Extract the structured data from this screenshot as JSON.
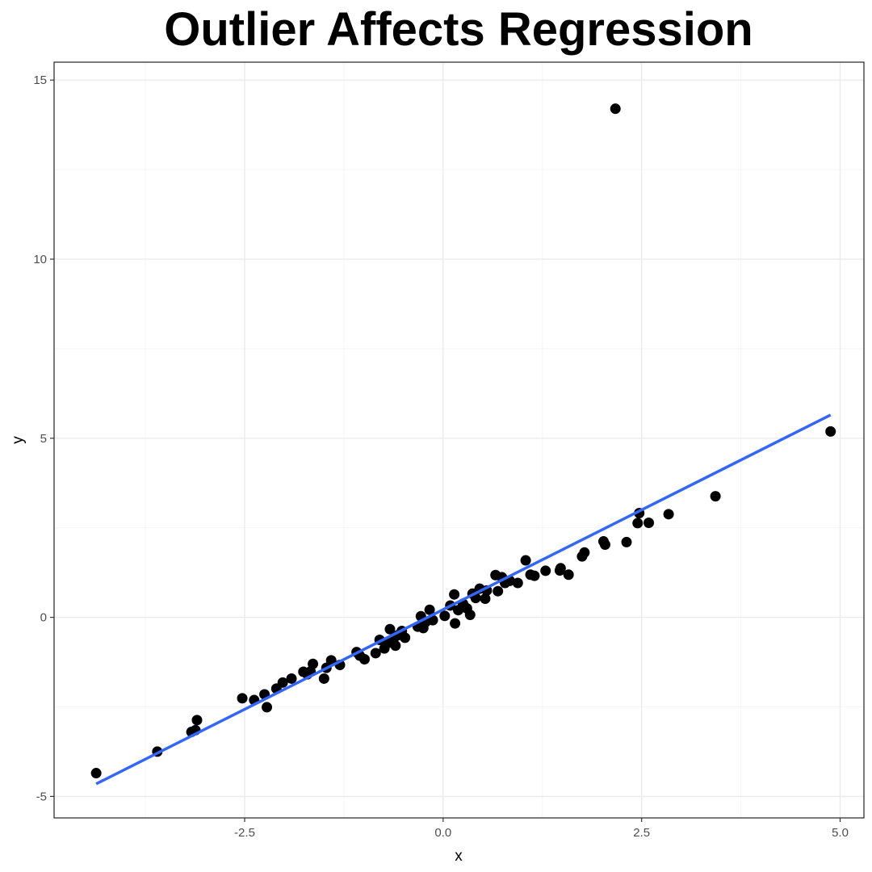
{
  "chart_data": {
    "type": "scatter",
    "title": "Outlier Affects Regression",
    "xlabel": "x",
    "ylabel": "y",
    "xlim": [
      -4.9,
      5.3
    ],
    "ylim": [
      -5.6,
      15.5
    ],
    "x_ticks": [
      -2.5,
      0.0,
      2.5,
      5.0
    ],
    "x_tick_labels": [
      "-2.5",
      "0.0",
      "2.5",
      "5.0"
    ],
    "y_ticks": [
      -5,
      0,
      5,
      10,
      15
    ],
    "y_tick_labels": [
      "-5",
      "0",
      "5",
      "10",
      "15"
    ],
    "grid": true,
    "points": [
      {
        "x": -4.37,
        "y": -4.35
      },
      {
        "x": -3.6,
        "y": -3.75
      },
      {
        "x": -3.17,
        "y": -3.2
      },
      {
        "x": -3.12,
        "y": -3.15
      },
      {
        "x": -3.1,
        "y": -2.87
      },
      {
        "x": -2.53,
        "y": -2.26
      },
      {
        "x": -2.38,
        "y": -2.31
      },
      {
        "x": -2.25,
        "y": -2.15
      },
      {
        "x": -2.22,
        "y": -2.51
      },
      {
        "x": -2.1,
        "y": -1.99
      },
      {
        "x": -2.02,
        "y": -1.82
      },
      {
        "x": -1.91,
        "y": -1.71
      },
      {
        "x": -1.76,
        "y": -1.52
      },
      {
        "x": -1.71,
        "y": -1.59
      },
      {
        "x": -1.67,
        "y": -1.51
      },
      {
        "x": -1.64,
        "y": -1.3
      },
      {
        "x": -1.5,
        "y": -1.71
      },
      {
        "x": -1.47,
        "y": -1.41
      },
      {
        "x": -1.41,
        "y": -1.2
      },
      {
        "x": -1.3,
        "y": -1.33
      },
      {
        "x": -1.09,
        "y": -0.97
      },
      {
        "x": -1.05,
        "y": -1.07
      },
      {
        "x": -0.99,
        "y": -1.17
      },
      {
        "x": -0.85,
        "y": -1.0
      },
      {
        "x": -0.8,
        "y": -0.63
      },
      {
        "x": -0.74,
        "y": -0.87
      },
      {
        "x": -0.7,
        "y": -0.72
      },
      {
        "x": -0.67,
        "y": -0.33
      },
      {
        "x": -0.63,
        "y": -0.65
      },
      {
        "x": -0.6,
        "y": -0.79
      },
      {
        "x": -0.57,
        "y": -0.5
      },
      {
        "x": -0.52,
        "y": -0.38
      },
      {
        "x": -0.48,
        "y": -0.57
      },
      {
        "x": -0.32,
        "y": -0.26
      },
      {
        "x": -0.28,
        "y": 0.03
      },
      {
        "x": -0.25,
        "y": -0.3
      },
      {
        "x": -0.22,
        "y": -0.13
      },
      {
        "x": -0.17,
        "y": 0.21
      },
      {
        "x": -0.13,
        "y": -0.08
      },
      {
        "x": 0.02,
        "y": 0.04
      },
      {
        "x": 0.09,
        "y": 0.33
      },
      {
        "x": 0.14,
        "y": 0.64
      },
      {
        "x": 0.15,
        "y": -0.17
      },
      {
        "x": 0.19,
        "y": 0.2
      },
      {
        "x": 0.25,
        "y": 0.38
      },
      {
        "x": 0.3,
        "y": 0.25
      },
      {
        "x": 0.34,
        "y": 0.07
      },
      {
        "x": 0.37,
        "y": 0.66
      },
      {
        "x": 0.41,
        "y": 0.54
      },
      {
        "x": 0.46,
        "y": 0.8
      },
      {
        "x": 0.53,
        "y": 0.52
      },
      {
        "x": 0.55,
        "y": 0.75
      },
      {
        "x": 0.66,
        "y": 1.18
      },
      {
        "x": 0.69,
        "y": 0.73
      },
      {
        "x": 0.74,
        "y": 1.12
      },
      {
        "x": 0.78,
        "y": 0.96
      },
      {
        "x": 0.84,
        "y": 1.02
      },
      {
        "x": 0.94,
        "y": 0.96
      },
      {
        "x": 1.04,
        "y": 1.59
      },
      {
        "x": 1.1,
        "y": 1.19
      },
      {
        "x": 1.15,
        "y": 1.16
      },
      {
        "x": 1.29,
        "y": 1.3
      },
      {
        "x": 1.47,
        "y": 1.31
      },
      {
        "x": 1.48,
        "y": 1.37
      },
      {
        "x": 1.58,
        "y": 1.19
      },
      {
        "x": 1.75,
        "y": 1.7
      },
      {
        "x": 1.78,
        "y": 1.81
      },
      {
        "x": 2.02,
        "y": 2.12
      },
      {
        "x": 2.04,
        "y": 2.03
      },
      {
        "x": 2.17,
        "y": 14.2
      },
      {
        "x": 2.31,
        "y": 2.1
      },
      {
        "x": 2.45,
        "y": 2.63
      },
      {
        "x": 2.47,
        "y": 2.91
      },
      {
        "x": 2.59,
        "y": 2.64
      },
      {
        "x": 2.84,
        "y": 2.88
      },
      {
        "x": 3.43,
        "y": 3.38
      },
      {
        "x": 4.88,
        "y": 5.19
      }
    ],
    "regression_line": {
      "x": [
        -4.37,
        4.88
      ],
      "y": [
        -4.65,
        5.65
      ]
    },
    "point_color": "#000000",
    "line_color": "#3366ff",
    "grid_major_color": "#ebebeb",
    "grid_minor_color": "#f5f5f5"
  }
}
